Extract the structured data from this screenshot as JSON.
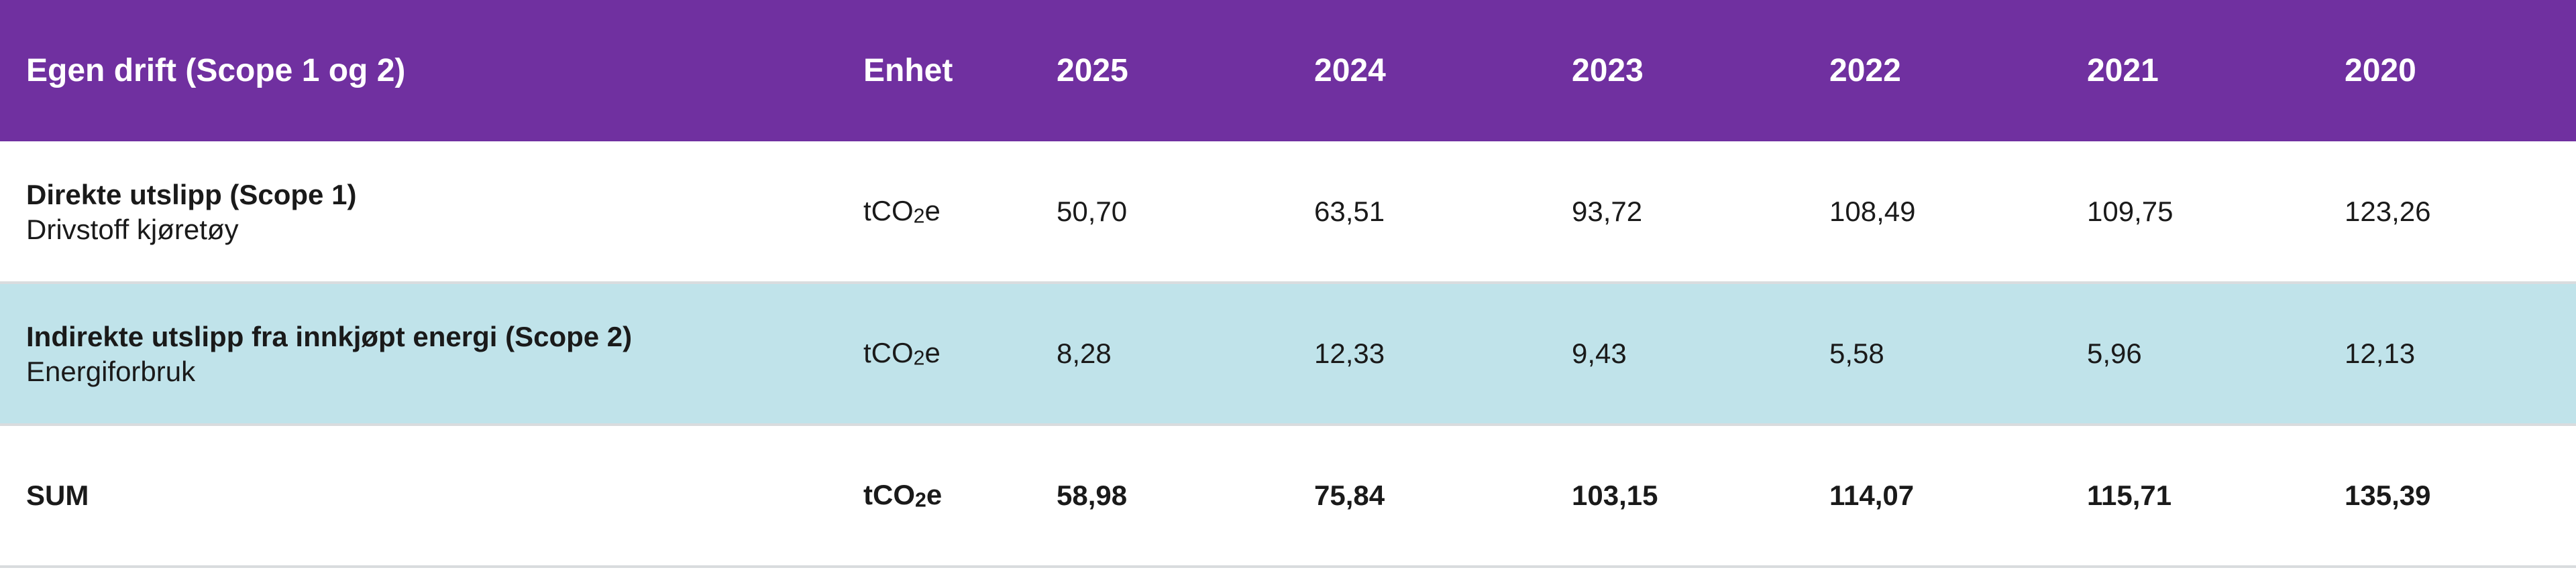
{
  "table": {
    "header": {
      "label": "Egen drift (Scope 1 og 2)",
      "unit": "Enhet",
      "years": [
        "2025",
        "2024",
        "2023",
        "2022",
        "2021",
        "2020"
      ]
    },
    "rows": [
      {
        "title": "Direkte utslipp (Scope 1)",
        "subtitle": "Drivstoff kjøretøy",
        "unit_pre": "tCO",
        "unit_sub": "2",
        "unit_post": "e",
        "values": [
          "50,70",
          "63,51",
          "93,72",
          "108,49",
          "109,75",
          "123,26"
        ]
      },
      {
        "title": "Indirekte utslipp fra innkjøpt energi (Scope 2)",
        "subtitle": "Energiforbruk",
        "unit_pre": "tCO",
        "unit_sub": "2",
        "unit_post": "e",
        "values": [
          "8,28",
          "12,33",
          "9,43",
          "5,58",
          "5,96",
          "12,13"
        ]
      }
    ],
    "sum": {
      "label": "SUM",
      "unit_pre": "tCO",
      "unit_sub": "2",
      "unit_post": "e",
      "values": [
        "58,98",
        "75,84",
        "103,15",
        "114,07",
        "115,71",
        "135,39"
      ]
    }
  },
  "colors": {
    "header_bg": "#7030a0",
    "header_text": "#ffffff",
    "highlight_row_bg": "#c0e3ea",
    "divider": "#d9dcde"
  }
}
